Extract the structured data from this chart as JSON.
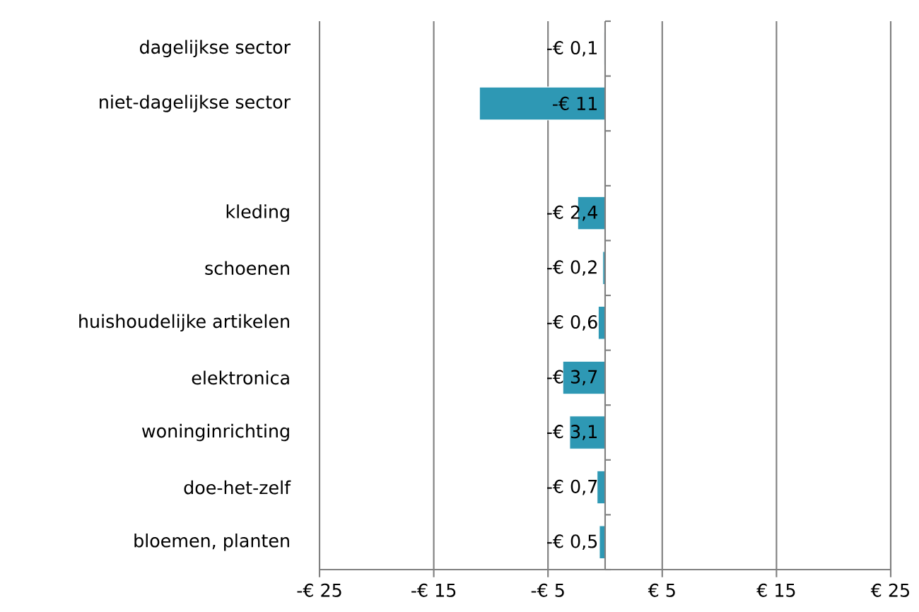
{
  "chart_data": {
    "type": "bar",
    "orientation": "horizontal",
    "categories": [
      "dagelijkse sector",
      "niet-dagelijkse sector",
      null,
      "kleding",
      "schoenen",
      "huishoudelijke artikelen",
      "elektronica",
      "woninginrichting",
      "doe-het-zelf",
      "bloemen, planten"
    ],
    "values": [
      -0.1,
      -11,
      null,
      -2.4,
      -0.2,
      -0.6,
      -3.7,
      -3.1,
      -0.7,
      -0.5
    ],
    "value_labels": [
      "-€ 0,1",
      "-€ 11",
      null,
      "-€ 2,4",
      "-€ 0,2",
      "-€ 0,6",
      "-€ 3,7",
      "-€ 3,1",
      "-€ 0,7",
      "-€ 0,5"
    ],
    "color": "#2e98b4",
    "xlim": [
      -25,
      25
    ],
    "xticks": [
      {
        "value": -25,
        "label": "-€ 25"
      },
      {
        "value": -15,
        "label": "-€ 15"
      },
      {
        "value": -5,
        "label": "-€ 5"
      },
      {
        "value": 5,
        "label": "€ 5"
      },
      {
        "value": 15,
        "label": "€ 15"
      },
      {
        "value": 25,
        "label": "€ 25"
      }
    ],
    "grid": "x"
  }
}
